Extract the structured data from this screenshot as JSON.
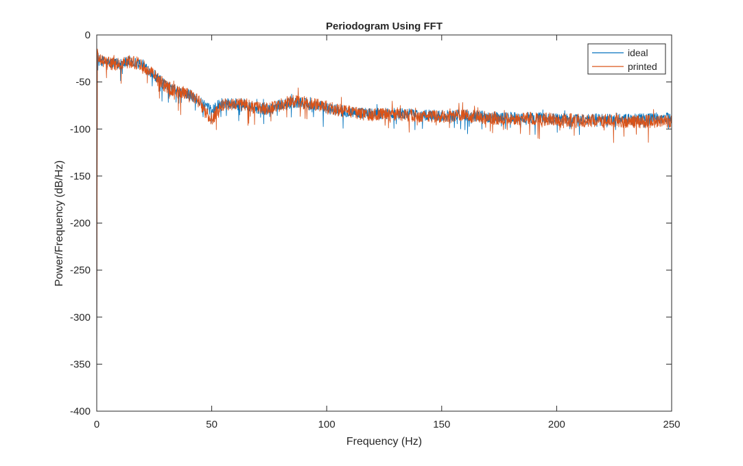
{
  "chart_data": {
    "type": "line",
    "title": "Periodogram Using FFT",
    "xlabel": "Frequency (Hz)",
    "ylabel": "Power/Frequency (dB/Hz)",
    "xlim": [
      0,
      250
    ],
    "ylim": [
      -400,
      0
    ],
    "xticks": [
      0,
      50,
      100,
      150,
      200,
      250
    ],
    "yticks": [
      0,
      -50,
      -100,
      -150,
      -200,
      -250,
      -300,
      -350,
      -400
    ],
    "grid": false,
    "legend_position": "top-right",
    "series": [
      {
        "name": "ideal",
        "color": "#0072BD",
        "noise_amplitude": 6,
        "envelope": [
          [
            0,
            -355
          ],
          [
            0.3,
            -22
          ],
          [
            1,
            -27
          ],
          [
            5,
            -30
          ],
          [
            10,
            -31
          ],
          [
            15,
            -28
          ],
          [
            20,
            -32
          ],
          [
            25,
            -42
          ],
          [
            30,
            -55
          ],
          [
            35,
            -60
          ],
          [
            40,
            -63
          ],
          [
            45,
            -72
          ],
          [
            48,
            -78
          ],
          [
            50,
            -80
          ],
          [
            52,
            -76
          ],
          [
            55,
            -72
          ],
          [
            60,
            -73
          ],
          [
            65,
            -74
          ],
          [
            70,
            -78
          ],
          [
            75,
            -79
          ],
          [
            80,
            -74
          ],
          [
            85,
            -72
          ],
          [
            90,
            -73
          ],
          [
            95,
            -75
          ],
          [
            100,
            -78
          ],
          [
            110,
            -82
          ],
          [
            120,
            -84
          ],
          [
            130,
            -83
          ],
          [
            140,
            -85
          ],
          [
            150,
            -86
          ],
          [
            160,
            -85
          ],
          [
            170,
            -87
          ],
          [
            180,
            -88
          ],
          [
            190,
            -88
          ],
          [
            200,
            -89
          ],
          [
            210,
            -90
          ],
          [
            220,
            -89
          ],
          [
            230,
            -90
          ],
          [
            240,
            -89
          ],
          [
            250,
            -88
          ]
        ]
      },
      {
        "name": "printed",
        "color": "#D95319",
        "noise_amplitude": 7,
        "envelope": [
          [
            0,
            -355
          ],
          [
            0.3,
            -15
          ],
          [
            1,
            -27
          ],
          [
            5,
            -30
          ],
          [
            10,
            -31
          ],
          [
            15,
            -28
          ],
          [
            20,
            -32
          ],
          [
            25,
            -42
          ],
          [
            30,
            -55
          ],
          [
            35,
            -60
          ],
          [
            40,
            -63
          ],
          [
            45,
            -72
          ],
          [
            48,
            -85
          ],
          [
            50,
            -90
          ],
          [
            52,
            -82
          ],
          [
            55,
            -74
          ],
          [
            60,
            -73
          ],
          [
            65,
            -74
          ],
          [
            70,
            -78
          ],
          [
            75,
            -79
          ],
          [
            80,
            -74
          ],
          [
            85,
            -71
          ],
          [
            90,
            -72
          ],
          [
            95,
            -74
          ],
          [
            100,
            -77
          ],
          [
            110,
            -82
          ],
          [
            120,
            -85
          ],
          [
            130,
            -84
          ],
          [
            140,
            -86
          ],
          [
            150,
            -87
          ],
          [
            160,
            -86
          ],
          [
            170,
            -88
          ],
          [
            180,
            -89
          ],
          [
            190,
            -89
          ],
          [
            200,
            -90
          ],
          [
            210,
            -91
          ],
          [
            220,
            -91
          ],
          [
            230,
            -92
          ],
          [
            240,
            -92
          ],
          [
            250,
            -92
          ]
        ]
      }
    ]
  }
}
